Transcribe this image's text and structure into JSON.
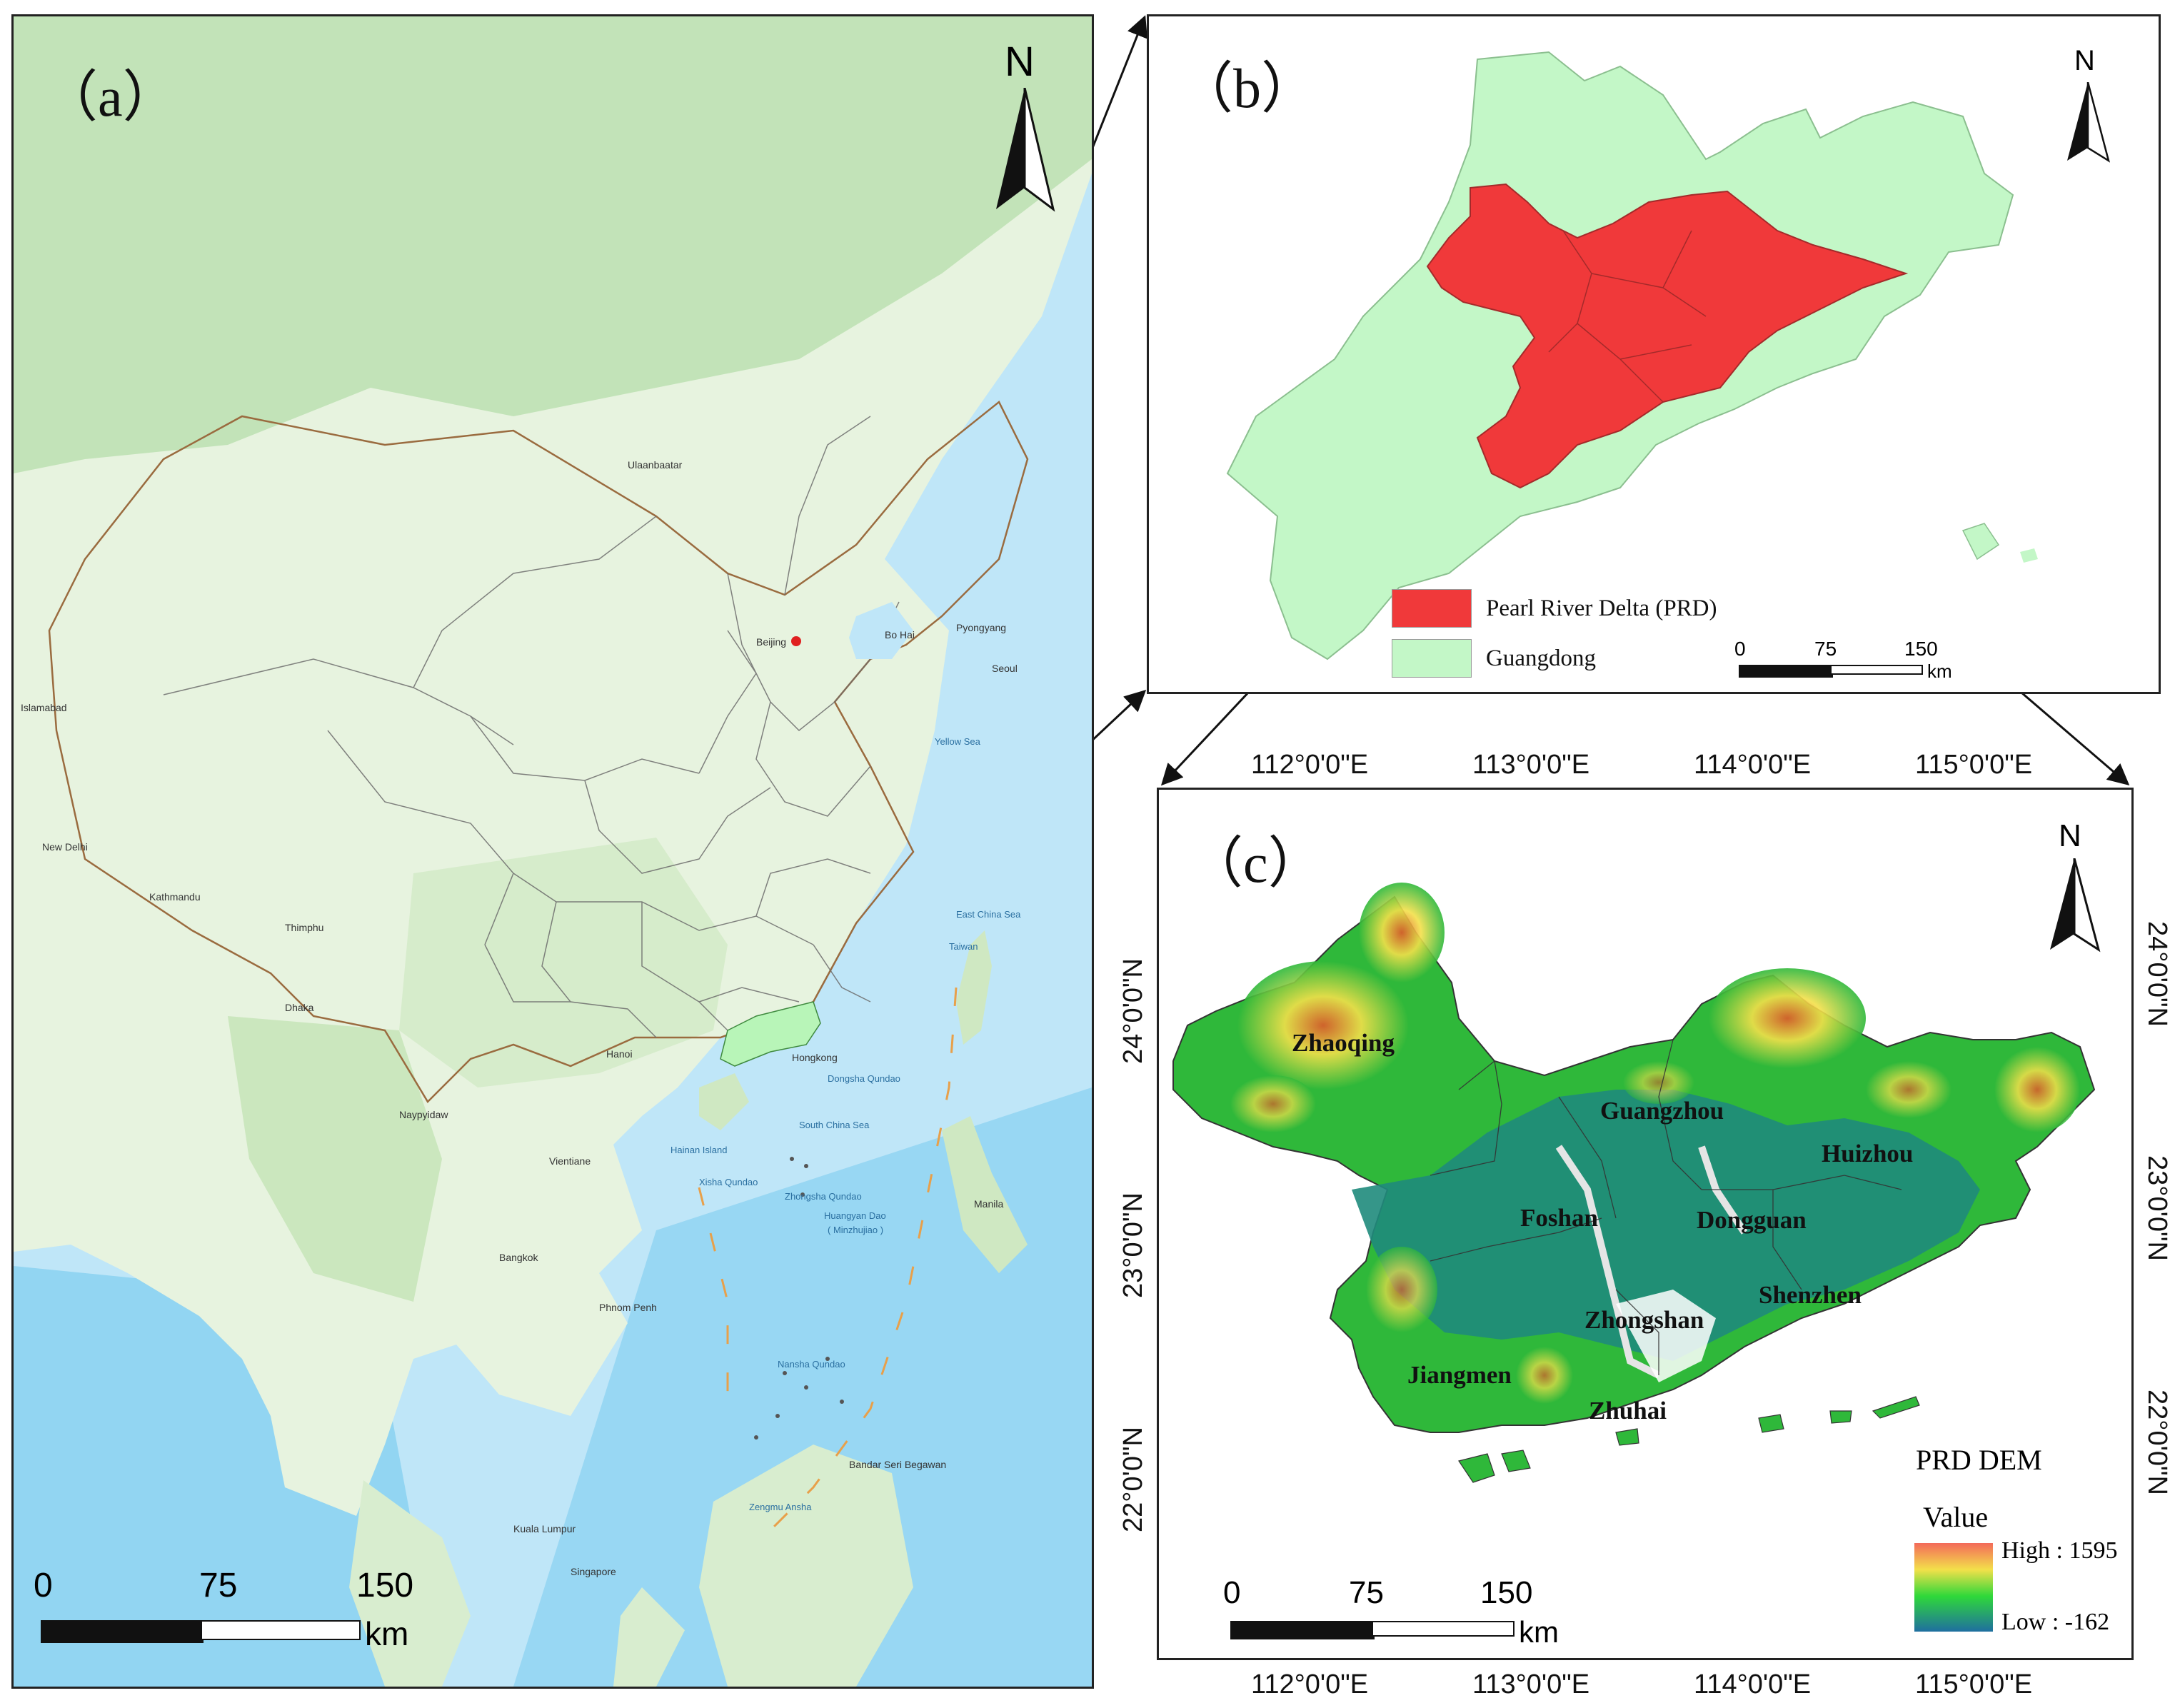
{
  "panel_a": {
    "label": "（a）",
    "north": "N",
    "scale": {
      "ticks": [
        "0",
        "75",
        "150"
      ],
      "unit": "km"
    },
    "places": [
      "Beijing",
      "Bo Hai",
      "Pyongyang",
      "Seoul",
      "Yellow Sea",
      "East China Sea",
      "Taiwan",
      "Hongkong",
      "Dongsha Qundao",
      "South China Sea",
      "Hainan Island",
      "Xisha Qundao",
      "Zhongsha Qundao",
      "Huangyan Dao",
      "( Minzhujiao )",
      "Manila",
      "Nansha Qundao",
      "Bandar Seri Begawan",
      "Zengmu Ansha",
      "Kuala Lumpur",
      "Singapore",
      "Bangkok",
      "Phnom Penh",
      "Vientiane",
      "Hanoi",
      "Naypyidaw",
      "Dhaka",
      "Thimphu",
      "Kathmandu",
      "New Delhi",
      "Islamabad",
      "Ulaanbaatar"
    ],
    "colors": {
      "land": "#e7f3df",
      "forest": "#b9dfae",
      "sea": "#bfe6f8",
      "deep_sea": "#7fcdf0",
      "guangdong": "#b8f5b8",
      "border": "#9a6b3f"
    }
  },
  "panel_b": {
    "label": "（b）",
    "north": "N",
    "legend": [
      {
        "label": "Pearl River Delta (PRD)",
        "color": "#f0393a"
      },
      {
        "label": "Guangdong",
        "color": "#c3f7c7"
      }
    ],
    "scale": {
      "ticks": [
        "0",
        "75",
        "150"
      ],
      "unit": "km"
    }
  },
  "panel_c": {
    "label": "（c）",
    "north": "N",
    "top_ticks": [
      "112°0'0\"E",
      "113°0'0\"E",
      "114°0'0\"E",
      "115°0'0\"E"
    ],
    "bottom_ticks": [
      "112°0'0\"E",
      "113°0'0\"E",
      "114°0'0\"E",
      "115°0'0\"E"
    ],
    "left_ticks": [
      "24°0'0\"N",
      "23°0'0\"N",
      "22°0'0\"N"
    ],
    "right_ticks": [
      "24°0'0\"N",
      "23°0'0\"N",
      "22°0'0\"N"
    ],
    "cities": [
      "Zhaoqing",
      "Guangzhou",
      "Huizhou",
      "Foshan",
      "Dongguan",
      "Shenzhen",
      "Zhongshan",
      "Jiangmen",
      "Zhuhai"
    ],
    "legend": {
      "title": "PRD DEM",
      "subtitle": "Value",
      "high": "High : 1595",
      "low": "Low : -162",
      "high_value": 1595,
      "low_value": -162
    },
    "scale": {
      "ticks": [
        "0",
        "75",
        "150"
      ],
      "unit": "km"
    },
    "colors": {
      "low": "#1f8b7c",
      "mid": "#2fb83a",
      "high": "#e05a2a",
      "peak": "#f3e04a"
    }
  }
}
